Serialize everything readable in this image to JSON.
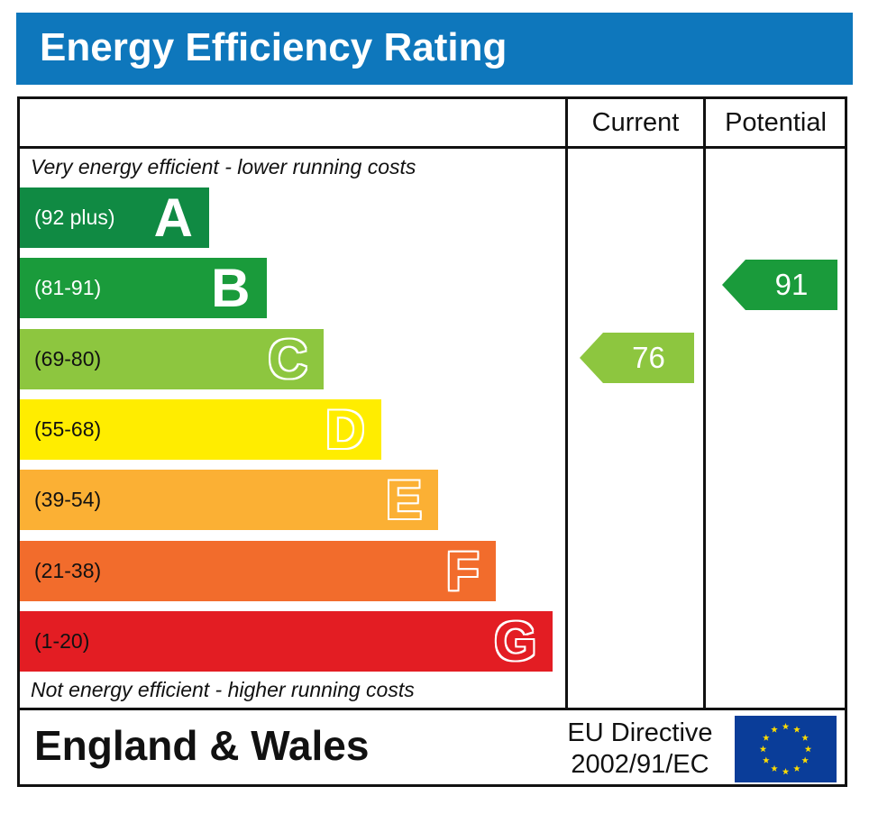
{
  "title": "Energy Efficiency Rating",
  "columns": {
    "current": "Current",
    "potential": "Potential"
  },
  "notes": {
    "top": "Very energy efficient - lower running costs",
    "bottom": "Not energy efficient - higher running costs"
  },
  "footer": {
    "region": "England & Wales",
    "directive_line1": "EU Directive",
    "directive_line2": "2002/91/EC",
    "flag_icon": "eu-flag-icon"
  },
  "chart_data": {
    "type": "bar",
    "title": "Energy Efficiency Rating",
    "categories": [
      "A",
      "B",
      "C",
      "D",
      "E",
      "F",
      "G"
    ],
    "bands": [
      {
        "letter": "A",
        "range": "(92 plus)",
        "min": 92,
        "max": 100,
        "color": "#108a43",
        "text_color": "#ffffff"
      },
      {
        "letter": "B",
        "range": "(81-91)",
        "min": 81,
        "max": 91,
        "color": "#1a9b3b",
        "text_color": "#ffffff"
      },
      {
        "letter": "C",
        "range": "(69-80)",
        "min": 69,
        "max": 80,
        "color": "#8dc63f",
        "text_color": "#111111"
      },
      {
        "letter": "D",
        "range": "(55-68)",
        "min": 55,
        "max": 68,
        "color": "#ffed00",
        "text_color": "#111111"
      },
      {
        "letter": "E",
        "range": "(39-54)",
        "min": 39,
        "max": 54,
        "color": "#fbb034",
        "text_color": "#111111"
      },
      {
        "letter": "F",
        "range": "(21-38)",
        "min": 21,
        "max": 38,
        "color": "#f26c2c",
        "text_color": "#111111"
      },
      {
        "letter": "G",
        "range": "(1-20)",
        "min": 1,
        "max": 20,
        "color": "#e31d23",
        "text_color": "#111111"
      }
    ],
    "ratings": [
      {
        "name": "Current",
        "value": 76,
        "band": "C",
        "color": "#8dc63f"
      },
      {
        "name": "Potential",
        "value": 91,
        "band": "B",
        "color": "#1a9b3b"
      }
    ]
  }
}
